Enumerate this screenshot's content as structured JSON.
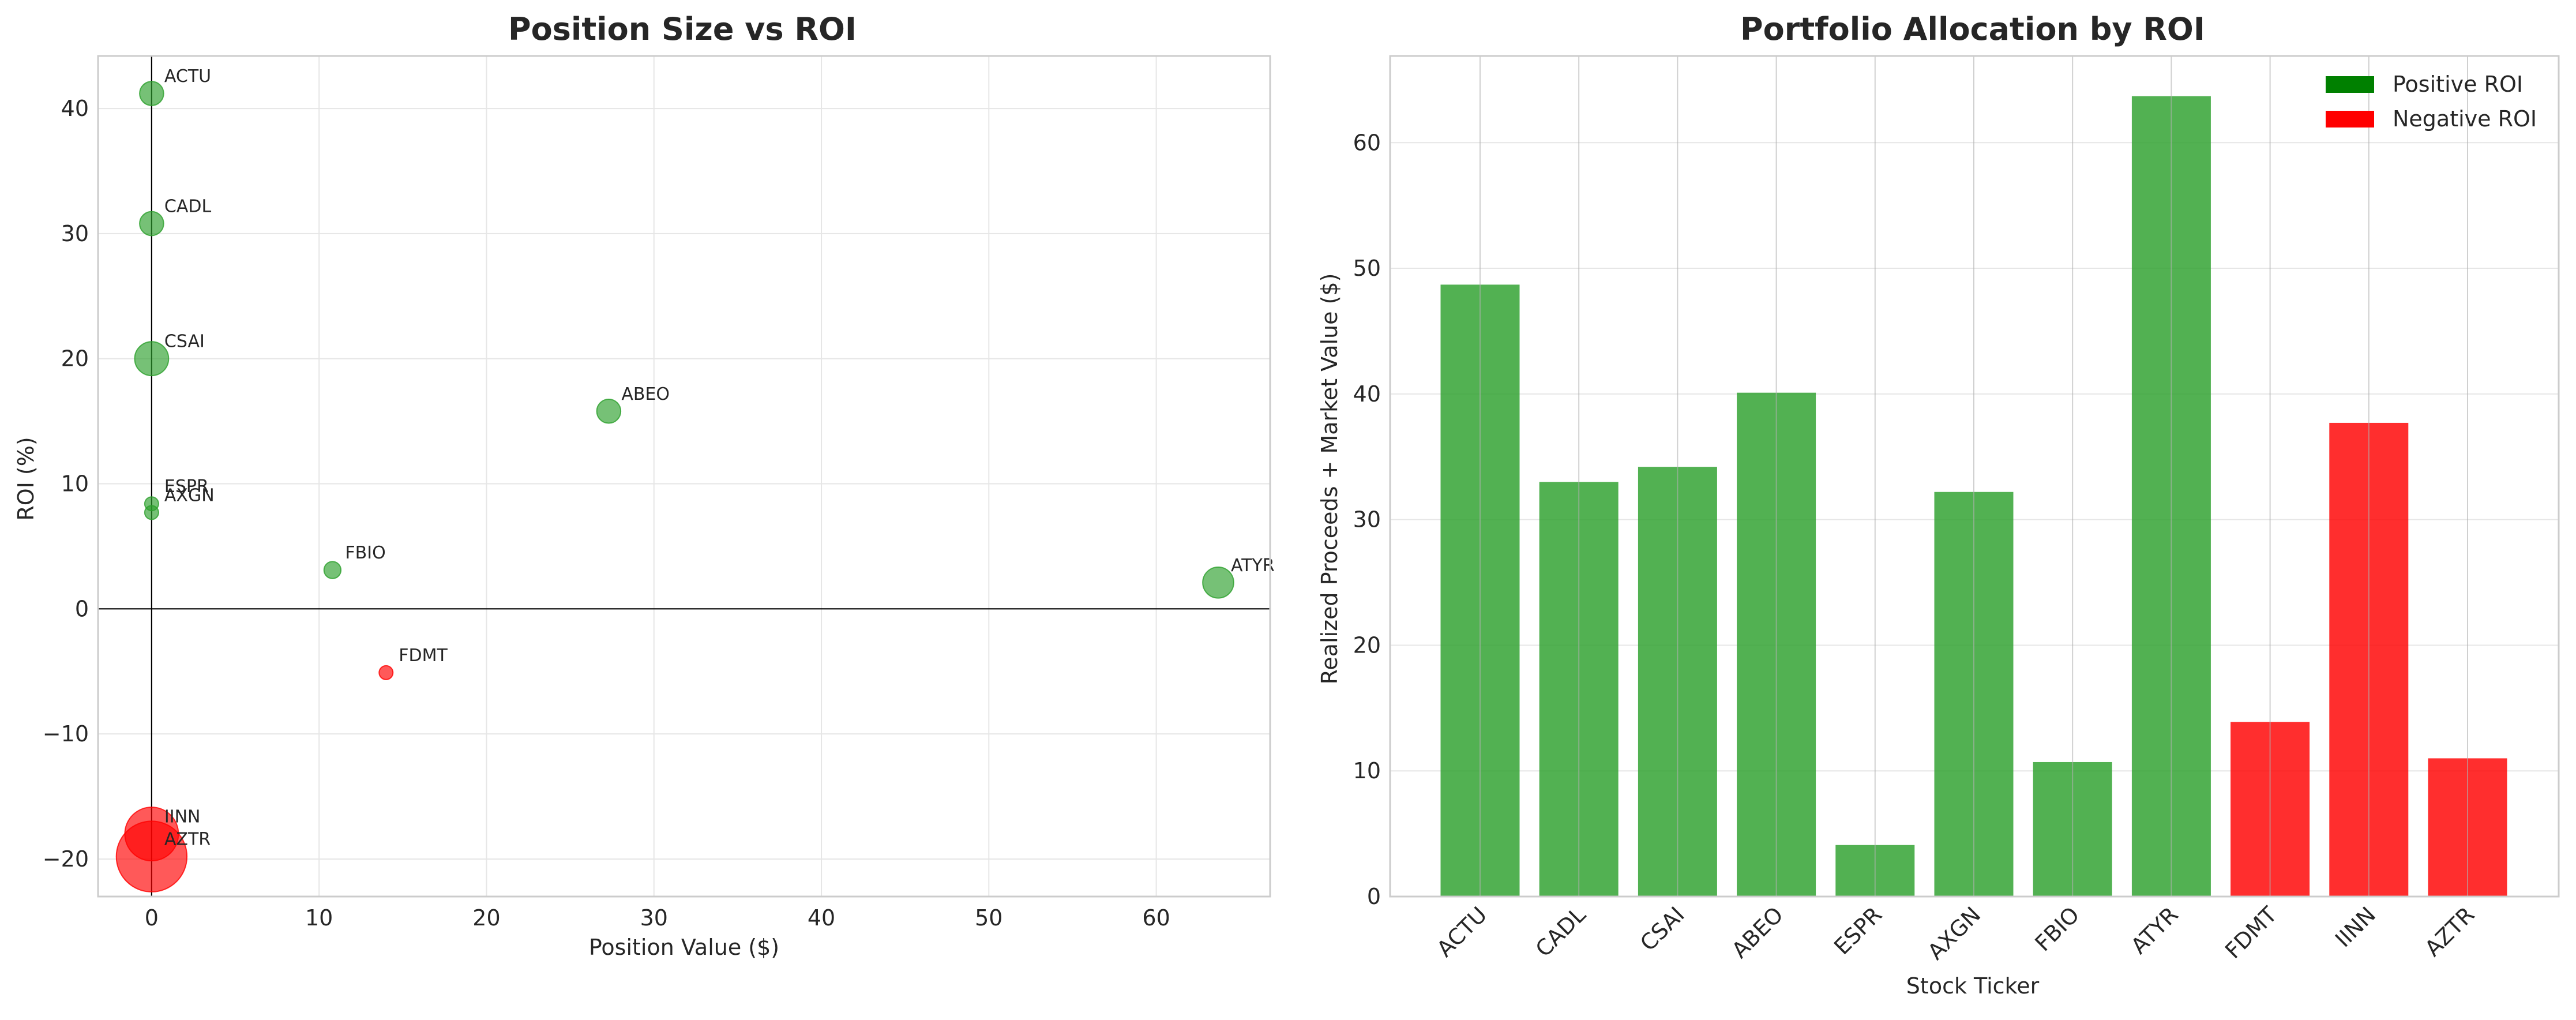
{
  "chart_data": [
    {
      "type": "scatter",
      "title": "Position Size vs ROI",
      "xlabel": "Position Value ($)",
      "ylabel": "ROI (%)",
      "xlim": [
        -3.2,
        66.8
      ],
      "ylim": [
        -23,
        44.2
      ],
      "xticks": [
        0,
        10,
        20,
        30,
        40,
        50,
        60
      ],
      "yticks": [
        -20,
        -10,
        0,
        10,
        20,
        30,
        40
      ],
      "grid": true,
      "reference_lines": {
        "x": 0,
        "y": 0
      },
      "points": [
        {
          "label": "ACTU",
          "x": 0.0,
          "y": 41.2,
          "size": 3,
          "color": "#2ca02c"
        },
        {
          "label": "CADL",
          "x": 0.0,
          "y": 30.8,
          "size": 3,
          "color": "#2ca02c"
        },
        {
          "label": "CSAI",
          "x": 0.0,
          "y": 20.0,
          "size": 6,
          "color": "#2ca02c"
        },
        {
          "label": "ESPR",
          "x": 0.0,
          "y": 8.4,
          "size": 1,
          "color": "#2ca02c"
        },
        {
          "label": "AXGN",
          "x": 0.0,
          "y": 7.7,
          "size": 1,
          "color": "#2ca02c"
        },
        {
          "label": "ABEO",
          "x": 27.3,
          "y": 15.8,
          "size": 3,
          "color": "#2ca02c"
        },
        {
          "label": "FBIO",
          "x": 10.8,
          "y": 3.1,
          "size": 1.5,
          "color": "#2ca02c"
        },
        {
          "label": "ATYR",
          "x": 63.7,
          "y": 2.1,
          "size": 5,
          "color": "#2ca02c"
        },
        {
          "label": "FDMT",
          "x": 14.0,
          "y": -5.1,
          "size": 1,
          "color": "#ff0000"
        },
        {
          "label": "IINN",
          "x": 0.0,
          "y": -18.0,
          "size": 15,
          "color": "#ff0000"
        },
        {
          "label": "AZTR",
          "x": 0.0,
          "y": -19.8,
          "size": 26,
          "color": "#ff0000"
        }
      ]
    },
    {
      "type": "bar",
      "title": "Portfolio Allocation by ROI",
      "xlabel": "Stock Ticker",
      "ylabel": "Realized Proceeds + Market Value ($)",
      "ylim": [
        0,
        66.9
      ],
      "yticks": [
        0,
        10,
        20,
        30,
        40,
        50,
        60
      ],
      "grid": true,
      "categories": [
        "ACTU",
        "CADL",
        "CSAI",
        "ABEO",
        "ESPR",
        "AXGN",
        "FBIO",
        "ATYR",
        "FDMT",
        "IINN",
        "AZTR"
      ],
      "values": [
        48.7,
        33.0,
        34.2,
        40.1,
        4.1,
        32.2,
        10.7,
        63.7,
        13.9,
        37.7,
        11.0
      ],
      "bar_colors": [
        "#2ca02c",
        "#2ca02c",
        "#2ca02c",
        "#2ca02c",
        "#2ca02c",
        "#2ca02c",
        "#2ca02c",
        "#2ca02c",
        "#ff0000",
        "#ff0000",
        "#ff0000"
      ],
      "legend": {
        "position": "top-right",
        "entries": [
          {
            "label": "Positive ROI",
            "color": "#008000"
          },
          {
            "label": "Negative ROI",
            "color": "#ff0000"
          }
        ]
      }
    }
  ]
}
